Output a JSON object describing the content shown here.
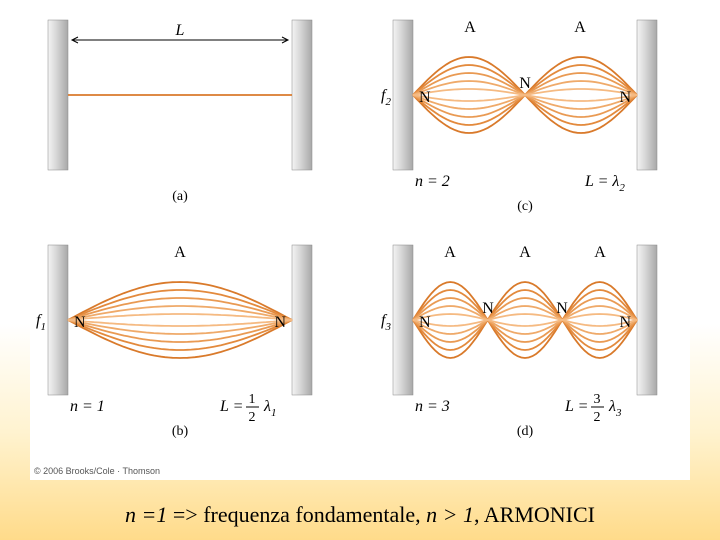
{
  "figure": {
    "background_color": "#ffffff",
    "page_gradient": [
      "#ffffff",
      "#fff3d0",
      "#ffdb8a"
    ],
    "wall_gradient": [
      "#f4f4f4",
      "#d8d8d8",
      "#a8a8a8"
    ],
    "wave_colors": [
      "#d97a2b",
      "#e38a3d",
      "#e99a53",
      "#efaa6a",
      "#f5ba82"
    ],
    "wave_amplitudes": [
      38,
      30,
      22,
      14,
      6
    ],
    "line_width": 1.8,
    "font_family": "Times New Roman",
    "label_fontsize": 16,
    "sublabel_fontsize": 14,
    "copyright": "© 2006 Brooks/Cole · Thomson",
    "panels": {
      "a": {
        "id": "(a)",
        "type": "string-length",
        "label_L": "L",
        "node_label": "",
        "antinode_labels": [],
        "n_label": "",
        "equation": ""
      },
      "b": {
        "id": "(b)",
        "type": "standing-wave",
        "harmonics": 1,
        "node_labels": [
          "N",
          "N"
        ],
        "antinode_labels": [
          "A"
        ],
        "f_label": "f",
        "f_sub": "1",
        "n_label": "n = 1",
        "equation_lhs": "L =",
        "equation_frac_top": "1",
        "equation_frac_bot": "2",
        "equation_lambda": "λ",
        "equation_lambda_sub": "1"
      },
      "c": {
        "id": "(c)",
        "type": "standing-wave",
        "harmonics": 2,
        "node_labels": [
          "N",
          "N",
          "N"
        ],
        "antinode_labels": [
          "A",
          "A"
        ],
        "f_label": "f",
        "f_sub": "2",
        "n_label": "n = 2",
        "equation_lhs": "L = λ",
        "equation_lambda_sub": "2",
        "equation_frac_top": "",
        "equation_frac_bot": ""
      },
      "d": {
        "id": "(d)",
        "type": "standing-wave",
        "harmonics": 3,
        "node_labels": [
          "N",
          "N",
          "N",
          "N"
        ],
        "antinode_labels": [
          "A",
          "A",
          "A"
        ],
        "f_label": "f",
        "f_sub": "3",
        "n_label": "n = 3",
        "equation_lhs": "L =",
        "equation_frac_top": "3",
        "equation_frac_bot": "2",
        "equation_lambda": "λ",
        "equation_lambda_sub": "3"
      }
    }
  },
  "caption": {
    "part1": "n =1",
    "arrow": " => ",
    "part2": "frequenza fondamentale, ",
    "part3": "n > 1",
    "part4": ", ARMONICI"
  }
}
